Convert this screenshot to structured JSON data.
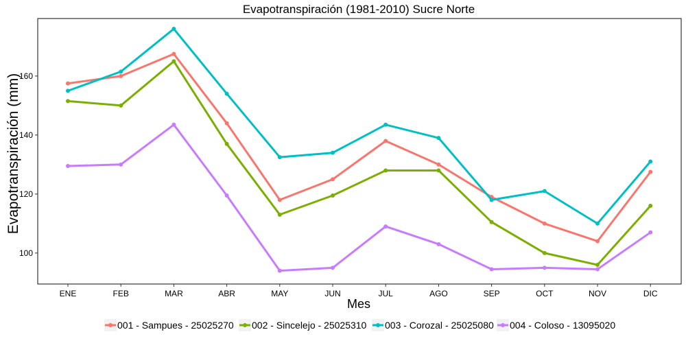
{
  "chart_data": {
    "type": "line",
    "title": "Evapotranspiración (1981-2010)  Sucre Norte",
    "xlabel": "Mes",
    "ylabel": "Evapotranspiración  (mm)",
    "categories": [
      "ENE",
      "FEB",
      "MAR",
      "ABR",
      "MAY",
      "JUN",
      "JUL",
      "AGO",
      "SEP",
      "OCT",
      "NOV",
      "DIC"
    ],
    "yticks": [
      100,
      120,
      140,
      160
    ],
    "ylim": [
      89.5,
      179.5
    ],
    "grid": false,
    "legend_position": "bottom",
    "series": [
      {
        "name": "001 - Sampues - 25025270",
        "color": "#F8766D",
        "values": [
          157.5,
          160.0,
          167.5,
          144.0,
          118.0,
          125.0,
          138.0,
          130.0,
          119.0,
          110.0,
          104.0,
          127.5
        ]
      },
      {
        "name": "002 - Sincelejo - 25025310",
        "color": "#7CAE00",
        "values": [
          151.5,
          150.0,
          165.0,
          137.0,
          113.0,
          119.5,
          128.0,
          128.0,
          110.5,
          100.0,
          96.0,
          116.0
        ]
      },
      {
        "name": "003 - Corozal - 25025080",
        "color": "#00BFC4",
        "values": [
          155.0,
          161.5,
          176.0,
          154.0,
          132.5,
          134.0,
          143.5,
          139.0,
          118.0,
          121.0,
          110.0,
          131.0
        ]
      },
      {
        "name": "004 - Coloso - 13095020",
        "color": "#C77CFF",
        "values": [
          129.5,
          130.0,
          143.5,
          119.5,
          94.0,
          95.0,
          109.0,
          103.0,
          94.5,
          95.0,
          94.5,
          107.0
        ]
      }
    ]
  }
}
